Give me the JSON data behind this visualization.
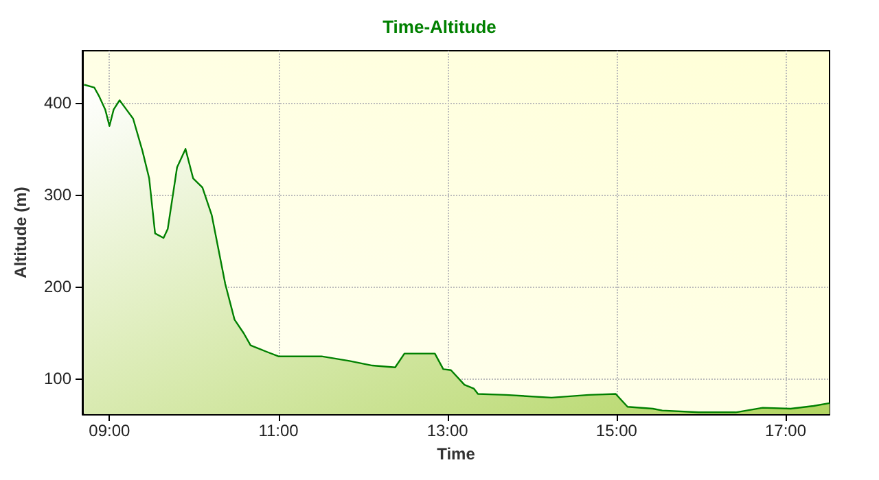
{
  "chart_data": {
    "type": "area",
    "title": "Time-Altitude",
    "xlabel": "Time",
    "ylabel": "Altitude (m)",
    "x": [
      8.7,
      8.82,
      8.88,
      8.95,
      9.0,
      9.05,
      9.12,
      9.2,
      9.28,
      9.39,
      9.47,
      9.54,
      9.64,
      9.69,
      9.8,
      9.9,
      9.99,
      10.1,
      10.21,
      10.37,
      10.48,
      10.59,
      10.67,
      10.86,
      11.0,
      11.51,
      11.84,
      12.11,
      12.38,
      12.49,
      12.85,
      12.95,
      13.04,
      13.2,
      13.31,
      13.36,
      13.69,
      14.23,
      14.67,
      14.99,
      15.13,
      15.43,
      15.54,
      15.97,
      16.41,
      16.73,
      17.06,
      17.33,
      17.52
    ],
    "values": [
      420,
      417,
      407,
      393,
      375,
      393,
      403,
      393,
      383,
      348,
      318,
      258,
      253,
      263,
      330,
      350,
      318,
      308,
      278,
      203,
      164,
      149,
      136,
      129,
      124,
      124,
      119,
      114,
      112,
      127,
      127,
      110,
      109,
      93,
      89,
      83,
      82,
      79,
      82,
      83,
      69,
      67,
      65,
      63,
      63,
      68,
      67,
      70,
      73
    ],
    "color": "#008000",
    "xlim": [
      8.68,
      17.52
    ],
    "xticks": [
      {
        "value": 9,
        "label": "09:00"
      },
      {
        "value": 11,
        "label": "11:00"
      },
      {
        "value": 13,
        "label": "13:00"
      },
      {
        "value": 15,
        "label": "15:00"
      },
      {
        "value": 17,
        "label": "17:00"
      }
    ],
    "ylim": [
      61,
      457
    ],
    "yticks": [
      100,
      200,
      300,
      400
    ],
    "grid": true,
    "marker": "none",
    "line_style": "solid"
  }
}
